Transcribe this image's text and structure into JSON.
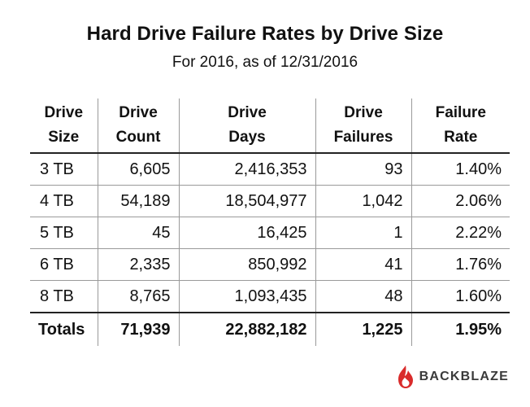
{
  "title": "Hard Drive Failure Rates by Drive Size",
  "subtitle": "For 2016, as of 12/31/2016",
  "table": {
    "headers": [
      [
        "Drive",
        "Size"
      ],
      [
        "Drive",
        "Count"
      ],
      [
        "Drive",
        "Days"
      ],
      [
        "Drive",
        "Failures"
      ],
      [
        "Failure",
        "Rate"
      ]
    ],
    "rows": [
      [
        "3 TB",
        "6,605",
        "2,416,353",
        "93",
        "1.40%"
      ],
      [
        "4 TB",
        "54,189",
        "18,504,977",
        "1,042",
        "2.06%"
      ],
      [
        "5 TB",
        "45",
        "16,425",
        "1",
        "2.22%"
      ],
      [
        "6 TB",
        "2,335",
        "850,992",
        "41",
        "1.76%"
      ],
      [
        "8 TB",
        "8,765",
        "1,093,435",
        "48",
        "1.60%"
      ]
    ],
    "totals": [
      "Totals",
      "71,939",
      "22,882,182",
      "1,225",
      "1.95%"
    ]
  },
  "brand": {
    "name": "BACKBLAZE",
    "color": "#d92b2b",
    "icon": "flame-icon"
  }
}
